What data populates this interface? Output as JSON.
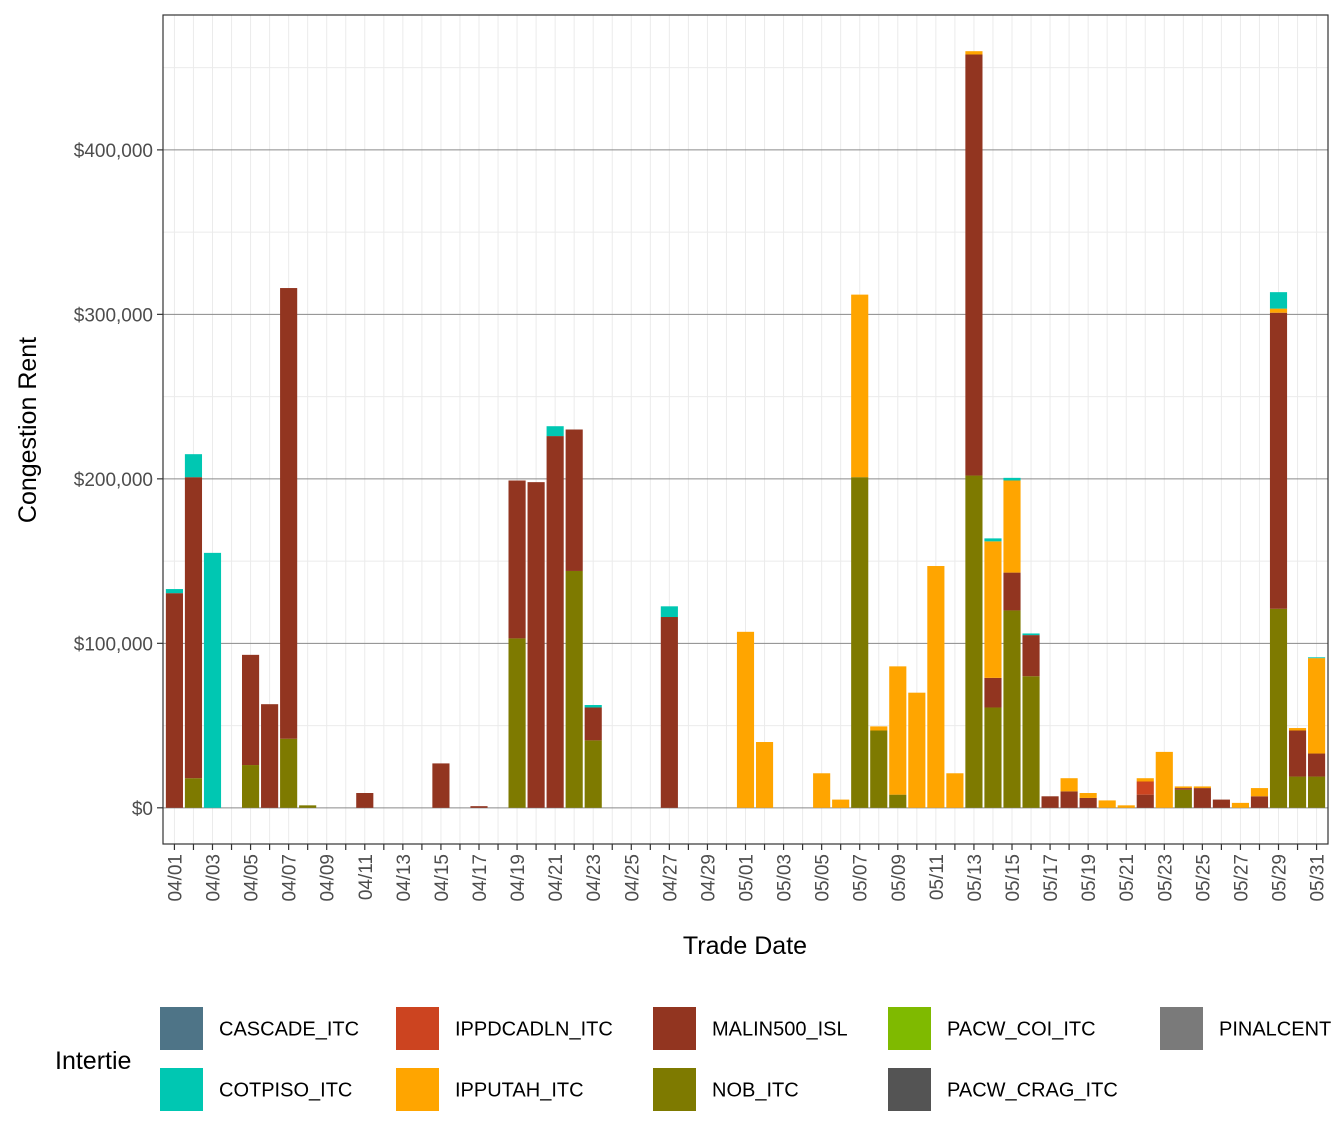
{
  "chart_data": {
    "type": "bar",
    "stacked": true,
    "xlabel": "Trade Date",
    "ylabel": "Congestion Rent",
    "ylim": [
      -22000,
      482000
    ],
    "y_ticks": [
      {
        "value": 0,
        "label": "$0"
      },
      {
        "value": 100000,
        "label": "$100,000"
      },
      {
        "value": 200000,
        "label": "$200,000"
      },
      {
        "value": 300000,
        "label": "$300,000"
      },
      {
        "value": 400000,
        "label": "$400,000"
      }
    ],
    "categories": [
      "04/01",
      "04/02",
      "04/03",
      "04/04",
      "04/05",
      "04/06",
      "04/07",
      "04/08",
      "04/09",
      "04/10",
      "04/11",
      "04/12",
      "04/13",
      "04/14",
      "04/15",
      "04/16",
      "04/17",
      "04/18",
      "04/19",
      "04/20",
      "04/21",
      "04/22",
      "04/23",
      "04/24",
      "04/25",
      "04/26",
      "04/27",
      "04/28",
      "04/29",
      "04/30",
      "05/01",
      "05/02",
      "05/03",
      "05/04",
      "05/05",
      "05/06",
      "05/07",
      "05/08",
      "05/09",
      "05/10",
      "05/11",
      "05/12",
      "05/13",
      "05/14",
      "05/15",
      "05/16",
      "05/17",
      "05/18",
      "05/19",
      "05/20",
      "05/21",
      "05/22",
      "05/23",
      "05/24",
      "05/25",
      "05/26",
      "05/27",
      "05/28",
      "05/29",
      "05/30",
      "05/31"
    ],
    "x_tick_labels": [
      "04/01",
      "04/03",
      "04/05",
      "04/07",
      "04/09",
      "04/11",
      "04/13",
      "04/15",
      "04/17",
      "04/19",
      "04/21",
      "04/23",
      "04/25",
      "04/27",
      "04/29",
      "05/01",
      "05/03",
      "05/05",
      "05/07",
      "05/09",
      "05/11",
      "05/13",
      "05/15",
      "05/17",
      "05/19",
      "05/21",
      "05/23",
      "05/25",
      "05/27",
      "05/29",
      "05/31"
    ],
    "legend": {
      "title": "Intertie",
      "placement": "bottom"
    },
    "series": [
      {
        "name": "CASCADE_ITC",
        "color": "#4e7487",
        "values": [
          0,
          0,
          0,
          0,
          0,
          0,
          0,
          0,
          0,
          0,
          0,
          0,
          0,
          0,
          0,
          0,
          0,
          0,
          0,
          0,
          0,
          0,
          0,
          0,
          0,
          0,
          0,
          0,
          0,
          0,
          0,
          0,
          0,
          0,
          0,
          0,
          0,
          0,
          0,
          0,
          0,
          0,
          0,
          0,
          0,
          0,
          0,
          0,
          0,
          0,
          0,
          0,
          0,
          0,
          0,
          0,
          0,
          0,
          0,
          0,
          0
        ]
      },
      {
        "name": "COTPISO_ITC",
        "color": "#00c7b2",
        "values": [
          2500,
          14000,
          155000,
          0,
          0,
          0,
          0,
          0,
          0,
          0,
          0,
          0,
          0,
          0,
          0,
          0,
          0,
          0,
          0,
          0,
          6000,
          0,
          1500,
          0,
          0,
          0,
          6500,
          0,
          0,
          0,
          0,
          0,
          0,
          0,
          0,
          0,
          0,
          0,
          0,
          0,
          0,
          0,
          0,
          1800,
          1600,
          1000,
          0,
          0,
          0,
          0,
          0,
          0,
          0,
          0,
          0,
          0,
          0,
          0,
          10000,
          0,
          500
        ]
      },
      {
        "name": "IPPDCADLN_ITC",
        "color": "#cc4420",
        "values": [
          0,
          0,
          0,
          0,
          0,
          0,
          0,
          0,
          0,
          0,
          0,
          0,
          0,
          0,
          0,
          0,
          0,
          0,
          0,
          0,
          0,
          0,
          0,
          0,
          0,
          0,
          0,
          0,
          0,
          0,
          0,
          0,
          0,
          0,
          0,
          0,
          0,
          0,
          0,
          0,
          0,
          0,
          0,
          0,
          0,
          0,
          0,
          0,
          0,
          0,
          0,
          8000,
          0,
          0,
          0,
          0,
          0,
          0,
          0,
          0,
          0
        ]
      },
      {
        "name": "IPPUTAH_ITC",
        "color": "#ffa500",
        "values": [
          0,
          0,
          0,
          0,
          0,
          0,
          0,
          0,
          0,
          0,
          0,
          0,
          0,
          0,
          0,
          0,
          0,
          0,
          0,
          0,
          0,
          0,
          0,
          0,
          0,
          0,
          0,
          0,
          0,
          0,
          107000,
          40000,
          0,
          0,
          21000,
          5000,
          111000,
          2500,
          78000,
          70000,
          147000,
          21000,
          2000,
          83000,
          56000,
          0,
          0,
          8000,
          3000,
          4500,
          1500,
          2000,
          34000,
          1000,
          1000,
          0,
          3000,
          5000,
          2500,
          1500,
          58000
        ]
      },
      {
        "name": "MALIN500_ISL",
        "color": "#923520",
        "values": [
          130500,
          183000,
          0,
          0,
          67000,
          63000,
          274000,
          0,
          0,
          0,
          9000,
          0,
          0,
          0,
          27000,
          0,
          1000,
          0,
          96000,
          198000,
          226000,
          86000,
          20000,
          0,
          0,
          0,
          116000,
          0,
          0,
          0,
          0,
          0,
          0,
          0,
          0,
          0,
          0,
          0,
          0,
          0,
          0,
          0,
          256000,
          18000,
          23000,
          25000,
          7000,
          10000,
          6000,
          0,
          0,
          8000,
          0,
          1000,
          12000,
          5000,
          0,
          7000,
          180000,
          28000,
          14000
        ]
      },
      {
        "name": "NOB_ITC",
        "color": "#7e7a00",
        "values": [
          0,
          18000,
          0,
          0,
          26000,
          0,
          42000,
          1500,
          0,
          0,
          0,
          0,
          0,
          0,
          0,
          0,
          0,
          0,
          103000,
          0,
          0,
          144000,
          41000,
          0,
          0,
          0,
          0,
          0,
          0,
          0,
          0,
          0,
          0,
          0,
          0,
          0,
          201000,
          47000,
          8000,
          0,
          0,
          0,
          202000,
          61000,
          120000,
          80000,
          0,
          0,
          0,
          0,
          0,
          0,
          0,
          11000,
          0,
          0,
          0,
          0,
          121000,
          19000,
          19000
        ]
      },
      {
        "name": "PACW_COI_ITC",
        "color": "#7fba00",
        "values": [
          0,
          0,
          0,
          0,
          0,
          0,
          0,
          0,
          0,
          0,
          0,
          0,
          0,
          0,
          0,
          0,
          0,
          0,
          0,
          0,
          0,
          0,
          0,
          0,
          0,
          0,
          0,
          0,
          0,
          0,
          0,
          0,
          0,
          0,
          0,
          0,
          0,
          0,
          0,
          0,
          0,
          0,
          0,
          0,
          0,
          0,
          0,
          0,
          0,
          0,
          0,
          0,
          0,
          0,
          0,
          0,
          0,
          0,
          0,
          0,
          0
        ]
      },
      {
        "name": "PACW_CRAG_ITC",
        "color": "#545454",
        "values": [
          0,
          0,
          0,
          0,
          0,
          0,
          0,
          0,
          0,
          0,
          0,
          0,
          0,
          0,
          0,
          0,
          0,
          0,
          0,
          0,
          0,
          0,
          0,
          0,
          0,
          0,
          0,
          0,
          0,
          0,
          0,
          0,
          0,
          0,
          0,
          0,
          0,
          0,
          0,
          0,
          0,
          0,
          0,
          0,
          0,
          0,
          0,
          0,
          0,
          0,
          0,
          0,
          0,
          0,
          0,
          0,
          0,
          0,
          0,
          0,
          0
        ]
      },
      {
        "name": "PINALCENT",
        "color": "#7a7a7a",
        "values": [
          0,
          0,
          0,
          0,
          0,
          0,
          0,
          0,
          0,
          0,
          0,
          0,
          0,
          0,
          0,
          0,
          0,
          0,
          0,
          0,
          0,
          0,
          0,
          0,
          0,
          0,
          0,
          0,
          0,
          0,
          0,
          0,
          0,
          0,
          0,
          0,
          0,
          0,
          0,
          0,
          0,
          0,
          0,
          0,
          0,
          0,
          0,
          0,
          0,
          0,
          0,
          0,
          0,
          0,
          0,
          0,
          0,
          0,
          0,
          0,
          0
        ]
      }
    ],
    "stack_order": [
      "NOB_ITC",
      "MALIN500_ISL",
      "IPPDCADLN_ITC",
      "IPPUTAH_ITC",
      "COTPISO_ITC"
    ]
  }
}
